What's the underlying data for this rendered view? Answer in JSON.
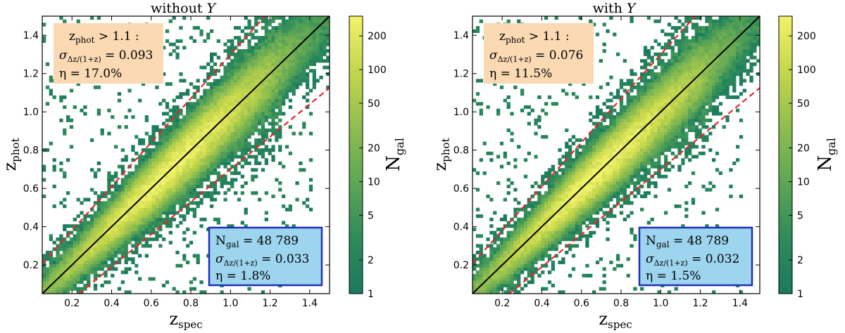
{
  "chart_data": [
    {
      "type": "heatmap",
      "title": "without Y",
      "title_prefix": "without ",
      "title_var": "Y",
      "xlabel": "z",
      "xlabel_sub": "spec",
      "ylabel": "z",
      "ylabel_sub": "phot",
      "xlim": [
        0.05,
        1.5
      ],
      "ylim": [
        0.05,
        1.5
      ],
      "xticks": [
        0.2,
        0.4,
        0.6,
        0.8,
        1.0,
        1.2,
        1.4
      ],
      "xtick_labels": [
        "0.2",
        "0.4",
        "0.6",
        "0.8",
        "1.0",
        "1.2",
        "1.4"
      ],
      "yticks": [
        0.2,
        0.4,
        0.6,
        0.8,
        1.0,
        1.2,
        1.4
      ],
      "ytick_labels": [
        "0.2",
        "0.4",
        "0.6",
        "0.8",
        "1.0",
        "1.2",
        "1.4"
      ],
      "scatter_width": 0.033,
      "outlier_fraction": 0.018,
      "identity_line": {
        "x": [
          0.05,
          1.5
        ],
        "y": [
          0.05,
          1.5
        ],
        "color": "#000000"
      },
      "outlier_bounds": [
        {
          "slope": 1.15,
          "intercept": 0.15,
          "color": "#e8262a"
        },
        {
          "slope": 0.85,
          "intercept": -0.15,
          "color": "#e8262a"
        }
      ],
      "colorbar": {
        "label": "N",
        "label_sub": "gal",
        "scale": "log",
        "range": [
          1,
          300
        ],
        "ticks": [
          1,
          2,
          5,
          10,
          20,
          50,
          100,
          200
        ],
        "tick_labels": [
          "1",
          "2",
          "5",
          "10",
          "20",
          "50",
          "100",
          "200"
        ],
        "colors": [
          "#1a7a5e",
          "#2e8b5a",
          "#5ea655",
          "#8fbe4f",
          "#c4d64c",
          "#f2f36a"
        ]
      },
      "box_high": {
        "line1": "z",
        "line1_sub": "phot",
        "line1_rest": " > 1.1 :",
        "line2_sym": "σ",
        "line2_sub": "Δz/(1+z)",
        "line2_rest": " = 0.093",
        "line3": "η = 17.0%",
        "fill": "#fad9b3"
      },
      "box_all": {
        "line1": "N",
        "line1_sub": "gal",
        "line1_rest": " = 48 789",
        "line2_sym": "σ",
        "line2_sub": "Δz/(1+z)",
        "line2_rest": " = 0.033",
        "line3": "η = 1.8%",
        "fill": "#9dd5ef",
        "border": "#1f2fb8"
      }
    },
    {
      "type": "heatmap",
      "title": "with Y",
      "title_prefix": "with ",
      "title_var": "Y",
      "xlabel": "z",
      "xlabel_sub": "spec",
      "ylabel": "z",
      "ylabel_sub": "phot",
      "xlim": [
        0.05,
        1.5
      ],
      "ylim": [
        0.05,
        1.5
      ],
      "xticks": [
        0.2,
        0.4,
        0.6,
        0.8,
        1.0,
        1.2,
        1.4
      ],
      "xtick_labels": [
        "0.2",
        "0.4",
        "0.6",
        "0.8",
        "1.0",
        "1.2",
        "1.4"
      ],
      "yticks": [
        0.2,
        0.4,
        0.6,
        0.8,
        1.0,
        1.2,
        1.4
      ],
      "ytick_labels": [
        "0.2",
        "0.4",
        "0.6",
        "0.8",
        "1.0",
        "1.2",
        "1.4"
      ],
      "scatter_width": 0.032,
      "outlier_fraction": 0.015,
      "identity_line": {
        "x": [
          0.05,
          1.5
        ],
        "y": [
          0.05,
          1.5
        ],
        "color": "#000000"
      },
      "outlier_bounds": [
        {
          "slope": 1.15,
          "intercept": 0.15,
          "color": "#e8262a"
        },
        {
          "slope": 0.85,
          "intercept": -0.15,
          "color": "#e8262a"
        }
      ],
      "colorbar": {
        "label": "N",
        "label_sub": "gal",
        "scale": "log",
        "range": [
          1,
          300
        ],
        "ticks": [
          1,
          2,
          5,
          10,
          20,
          50,
          100,
          200
        ],
        "tick_labels": [
          "1",
          "2",
          "5",
          "10",
          "20",
          "50",
          "100",
          "200"
        ],
        "colors": [
          "#1a7a5e",
          "#2e8b5a",
          "#5ea655",
          "#8fbe4f",
          "#c4d64c",
          "#f2f36a"
        ]
      },
      "box_high": {
        "line1": "z",
        "line1_sub": "phot",
        "line1_rest": " > 1.1 :",
        "line2_sym": "σ",
        "line2_sub": "Δz/(1+z)",
        "line2_rest": " = 0.076",
        "line3": "η = 11.5%",
        "fill": "#fad9b3"
      },
      "box_all": {
        "line1": "N",
        "line1_sub": "gal",
        "line1_rest": " = 48 789",
        "line2_sym": "σ",
        "line2_sub": "Δz/(1+z)",
        "line2_rest": " = 0.032",
        "line3": "η = 1.5%",
        "fill": "#9dd5ef",
        "border": "#1f2fb8"
      }
    }
  ]
}
